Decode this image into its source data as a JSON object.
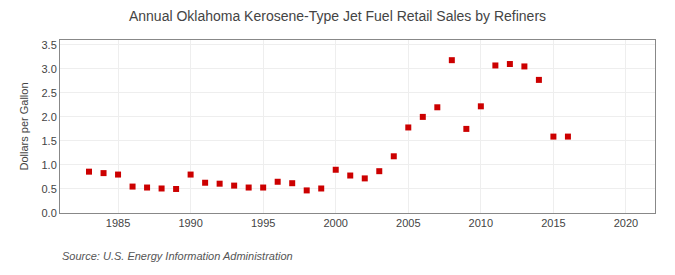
{
  "chart_data": {
    "type": "scatter",
    "title": "Annual Oklahoma Kerosene-Type Jet Fuel Retail Sales by Refiners",
    "ylabel": "Dollars per Gallon",
    "annotations": [
      "Source: U.S. Energy Information Administration"
    ],
    "x": [
      1983,
      1984,
      1985,
      1986,
      1987,
      1988,
      1989,
      1990,
      1991,
      1992,
      1993,
      1994,
      1995,
      1996,
      1997,
      1998,
      1999,
      2000,
      2001,
      2002,
      2003,
      2004,
      2005,
      2006,
      2007,
      2008,
      2009,
      2010,
      2011,
      2012,
      2013,
      2014,
      2015,
      2016
    ],
    "values": [
      0.86,
      0.83,
      0.8,
      0.55,
      0.53,
      0.51,
      0.5,
      0.8,
      0.63,
      0.61,
      0.57,
      0.53,
      0.53,
      0.65,
      0.62,
      0.47,
      0.51,
      0.9,
      0.78,
      0.72,
      0.87,
      1.18,
      1.78,
      2.0,
      2.2,
      3.18,
      1.75,
      2.22,
      3.07,
      3.1,
      3.05,
      2.77,
      1.59,
      1.59
    ],
    "color": "#cc0000",
    "marker": "square",
    "xlim": [
      1981,
      2022
    ],
    "ylim": [
      0.0,
      3.6
    ],
    "xticks": [
      1985,
      1990,
      1995,
      2000,
      2005,
      2010,
      2015,
      2020
    ],
    "yticks": [
      {
        "value": 0.0,
        "label": "0.0"
      },
      0.5,
      {
        "value": 1.0,
        "label": "1.0"
      },
      1.5,
      {
        "value": 2.0,
        "label": "2.0"
      },
      2.5,
      {
        "value": 3.0,
        "label": "3.0"
      },
      3.5
    ],
    "grid": true
  }
}
